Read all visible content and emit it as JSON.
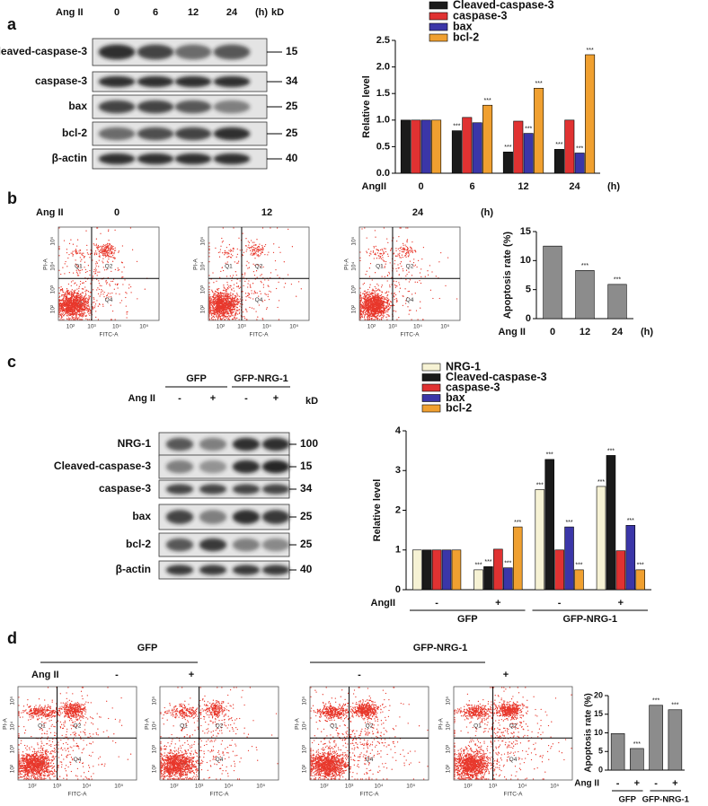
{
  "panels": [
    "a",
    "b",
    "c",
    "d"
  ],
  "blot_a": {
    "treatment": "Ang II",
    "lanes": [
      "0",
      "6",
      "12",
      "24"
    ],
    "unit": "(h)",
    "kd": "kD",
    "rows": [
      {
        "label": "Cleaved-caspase-3",
        "kd": 15
      },
      {
        "label": "caspase-3",
        "kd": 34
      },
      {
        "label": "bax",
        "kd": 25
      },
      {
        "label": "bcl-2",
        "kd": 25
      },
      {
        "label": "β-actin",
        "kd": 40
      }
    ]
  },
  "flow_b": {
    "treatment": "Ang II",
    "times": [
      "0",
      "12",
      "24"
    ],
    "unit": "(h)"
  },
  "flow": {
    "quadrants": [
      "Q1",
      "Q2",
      "Q3",
      "Q4"
    ],
    "xlabel": "FITC-A",
    "ylabel": "PI-A",
    "ticks": [
      "10²",
      "10³",
      "10⁴",
      "10⁵"
    ]
  },
  "blot_c": {
    "groups": [
      "GFP",
      "GFP-NRG-1"
    ],
    "treatment": "Ang II",
    "signs": [
      "-",
      "+",
      "-",
      "+"
    ],
    "kd": "kD",
    "rows": [
      {
        "label": "NRG-1",
        "kd": 100
      },
      {
        "label": "Cleaved-caspase-3",
        "kd": 15
      },
      {
        "label": "caspase-3",
        "kd": 34
      },
      {
        "label": "bax",
        "kd": 25
      },
      {
        "label": "bcl-2",
        "kd": 25
      },
      {
        "label": "β-actin",
        "kd": 40
      }
    ]
  },
  "flow_d": {
    "groups": [
      "GFP",
      "GFP-NRG-1"
    ],
    "treatment": "Ang II",
    "signs": [
      "-",
      "+",
      "-",
      "+"
    ]
  },
  "chart_data": [
    {
      "type": "bar",
      "ylabel": "Relative level",
      "xlabel": "AngII",
      "x_unit": "(h)",
      "categories": [
        "0",
        "6",
        "12",
        "24"
      ],
      "series": [
        {
          "name": "Cleaved-caspase-3",
          "color": "#1a1a1a",
          "values": [
            1.0,
            0.8,
            0.4,
            0.45
          ],
          "annotations": [
            null,
            "***",
            "***",
            "***"
          ]
        },
        {
          "name": "caspase-3",
          "color": "#e03232",
          "values": [
            1.0,
            1.05,
            0.98,
            1.0
          ],
          "annotations": [
            null,
            null,
            null,
            null
          ]
        },
        {
          "name": "bax",
          "color": "#3b36a8",
          "values": [
            1.0,
            0.95,
            0.75,
            0.38
          ],
          "annotations": [
            null,
            null,
            "***",
            "***"
          ]
        },
        {
          "name": "bcl-2",
          "color": "#f0a030",
          "values": [
            1.0,
            1.28,
            1.6,
            2.23
          ],
          "annotations": [
            null,
            "***",
            "***",
            "***"
          ]
        }
      ],
      "ylim": [
        0,
        2.5
      ],
      "yticks": [
        {
          "value": 0,
          "label": "0.0"
        },
        {
          "value": 0.5,
          "label": "0.5"
        },
        {
          "value": 1,
          "label": "1.0"
        },
        {
          "value": 1.5,
          "label": "1.5"
        },
        {
          "value": 2,
          "label": "2.0"
        },
        {
          "value": 2.5,
          "label": "2.5"
        }
      ],
      "legend": "top"
    },
    {
      "type": "bar",
      "ylabel": "Apoptosis rate (%)",
      "xlabel": "Ang II",
      "x_unit": "(h)",
      "categories": [
        "0",
        "12",
        "24"
      ],
      "values": [
        12.5,
        8.3,
        5.9
      ],
      "annotations": [
        null,
        "***",
        "***"
      ],
      "color": "#8c8c8c",
      "ylim": [
        0,
        15
      ],
      "yticks": [
        0,
        5,
        10,
        15
      ]
    },
    {
      "type": "bar",
      "ylabel": "Relative level",
      "xlabel": "AngII",
      "categories": [
        "-",
        "+",
        "-",
        "+"
      ],
      "groups": [
        "GFP",
        "GFP-NRG-1"
      ],
      "series": [
        {
          "name": "NRG-1",
          "color": "#f6f2d4",
          "values": [
            1.0,
            0.5,
            2.52,
            2.6
          ],
          "annotations": [
            null,
            "***",
            "***",
            "***"
          ]
        },
        {
          "name": "Cleaved-caspase-3",
          "color": "#1a1a1a",
          "values": [
            1.0,
            0.58,
            3.28,
            3.38
          ],
          "annotations": [
            null,
            "***",
            "***",
            "***"
          ]
        },
        {
          "name": "caspase-3",
          "color": "#e03232",
          "values": [
            1.0,
            1.02,
            1.0,
            0.98
          ],
          "annotations": [
            null,
            null,
            null,
            null
          ]
        },
        {
          "name": "bax",
          "color": "#3b36a8",
          "values": [
            1.0,
            0.55,
            1.58,
            1.62
          ],
          "annotations": [
            null,
            "***",
            "***",
            "***"
          ]
        },
        {
          "name": "bcl-2",
          "color": "#f0a030",
          "values": [
            1.0,
            1.58,
            0.5,
            0.5
          ],
          "annotations": [
            null,
            "***",
            "***",
            "***"
          ]
        }
      ],
      "ylim": [
        0,
        4
      ],
      "yticks": [
        0,
        1,
        2,
        3,
        4
      ],
      "legend": "top"
    },
    {
      "type": "bar",
      "ylabel": "Apoptosis rate (%)",
      "xlabel": "Ang II",
      "categories": [
        "-",
        "+",
        "-",
        "+"
      ],
      "groups": [
        "GFP",
        "GFP-NRG-1"
      ],
      "values": [
        9.8,
        5.8,
        17.4,
        16.2
      ],
      "annotations": [
        null,
        "***",
        "***",
        "***"
      ],
      "color": "#8c8c8c",
      "ylim": [
        0,
        20
      ],
      "yticks": [
        0,
        5,
        10,
        15,
        20
      ]
    }
  ]
}
